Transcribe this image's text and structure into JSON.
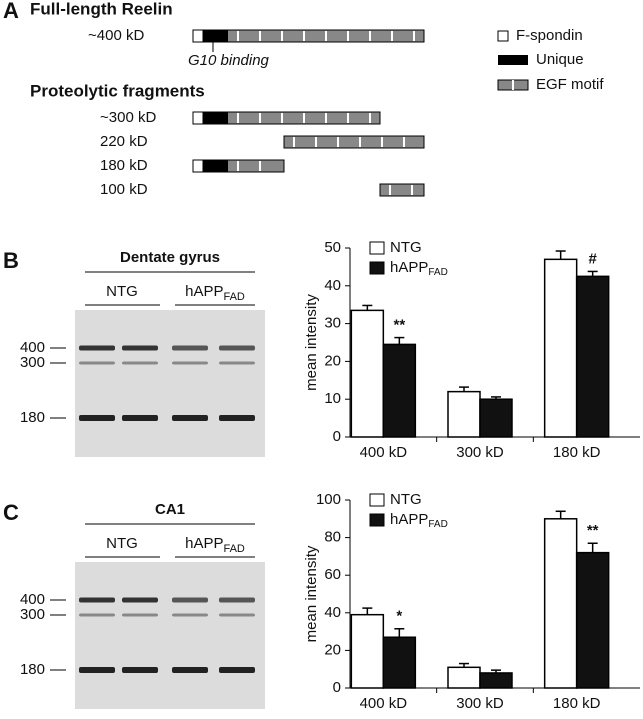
{
  "panel_a": {
    "label": "A",
    "title": "Full-length Reelin",
    "full_size": "~400 kD",
    "annotation": "G10 binding",
    "fragments_title": "Proteolytic fragments",
    "fragments": [
      "~300 kD",
      "220 kD",
      "180 kD",
      "100 kD"
    ],
    "legend": [
      "F-spondin",
      "Unique",
      "EGF motif"
    ]
  },
  "blots": [
    {
      "label": "B",
      "title": "Dentate gyrus",
      "groups": [
        {
          "text": "NTG"
        },
        {
          "text": "hAPP",
          "subscript": "FAD"
        }
      ],
      "markers": [
        "400",
        "300",
        "180"
      ]
    },
    {
      "label": "C",
      "title": "CA1",
      "groups": [
        {
          "text": "NTG"
        },
        {
          "text": "hAPP",
          "subscript": "FAD"
        }
      ],
      "markers": [
        "400",
        "300",
        "180"
      ]
    }
  ],
  "chart_data": [
    {
      "type": "bar",
      "ylabel": "mean intensity",
      "categories": [
        "400 kD",
        "300 kD",
        "180 kD"
      ],
      "ylim": [
        0,
        50
      ],
      "yticks": [
        0,
        10,
        20,
        30,
        40,
        50
      ],
      "series": [
        {
          "name": "NTG",
          "color": "#ffffff",
          "values": [
            33.5,
            12,
            47
          ],
          "errors": [
            1.3,
            1.2,
            2.2
          ]
        },
        {
          "name": "hAPP",
          "subscript": "FAD",
          "color": "#111111",
          "values": [
            24.5,
            10,
            42.5
          ],
          "errors": [
            1.8,
            0.6,
            1.3
          ],
          "significance": [
            "**",
            null,
            "#"
          ]
        }
      ]
    },
    {
      "type": "bar",
      "ylabel": "mean intensity",
      "categories": [
        "400 kD",
        "300 kD",
        "180 kD"
      ],
      "ylim": [
        0,
        100
      ],
      "yticks": [
        0,
        20,
        40,
        60,
        80,
        100
      ],
      "series": [
        {
          "name": "NTG",
          "color": "#ffffff",
          "values": [
            39,
            11,
            90
          ],
          "errors": [
            3.5,
            2,
            4
          ]
        },
        {
          "name": "hAPP",
          "subscript": "FAD",
          "color": "#111111",
          "values": [
            27,
            8,
            72
          ],
          "errors": [
            4.5,
            1.5,
            5
          ],
          "significance": [
            "*",
            null,
            "**"
          ]
        }
      ]
    }
  ]
}
